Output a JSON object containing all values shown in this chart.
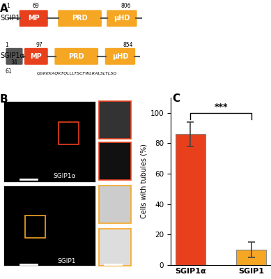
{
  "categories": [
    "SGIP1α",
    "SGIP1"
  ],
  "values": [
    86,
    10
  ],
  "errors": [
    8,
    5
  ],
  "bar_colors": [
    "#E8401C",
    "#F5A623"
  ],
  "bar_edge_colors": [
    "#888888",
    "#888888"
  ],
  "ylabel": "Cells with tubules (%)",
  "ylim": [
    0,
    110
  ],
  "yticks": [
    0,
    20,
    40,
    60,
    80,
    100
  ],
  "significance_text": "***",
  "bar_width": 0.5,
  "figsize": [
    3.89,
    4.0
  ],
  "dpi": 100,
  "panel_label_C": "C",
  "panel_label_A": "A",
  "panel_label_B": "B",
  "sgip1_label": "SGIP1",
  "sgip1a_label": "SGIP1α",
  "mp_color": "#E8401C",
  "prd_color": "#F5A623",
  "uhd_color": "#F5A623",
  "connector_color": "#888888",
  "bg_color": "#ffffff"
}
